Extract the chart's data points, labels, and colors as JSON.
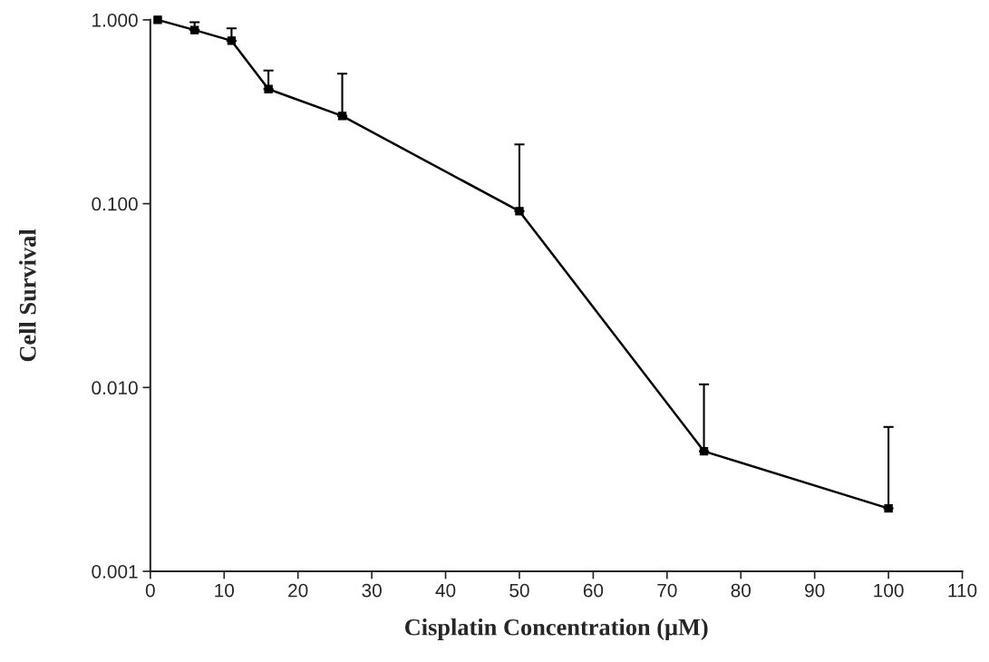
{
  "chart_data": {
    "type": "line",
    "xlabel": "Cisplatin Concentration (μM)",
    "ylabel": "Cell Survival",
    "x": [
      1,
      6,
      11,
      16,
      26,
      50,
      75,
      100
    ],
    "series": [
      {
        "color": "#000000",
        "values": [
          1.0,
          0.88,
          0.77,
          0.42,
          0.3,
          0.091,
          0.0045,
          0.0022
        ],
        "errors": [
          null,
          [
            0.88,
            0.97
          ],
          [
            0.77,
            0.9
          ],
          [
            0.42,
            0.53
          ],
          [
            0.3,
            0.51
          ],
          [
            0.091,
            0.21
          ],
          [
            0.0045,
            0.0104
          ],
          [
            0.0022,
            0.0061
          ]
        ]
      }
    ],
    "log": "y",
    "xlim": [
      0,
      110
    ],
    "xticks": [
      0,
      10,
      20,
      30,
      40,
      50,
      60,
      70,
      80,
      90,
      100,
      110
    ],
    "ylim": [
      0.001,
      1
    ],
    "yticks": [
      {
        "value": 0.001,
        "label": "0.001"
      },
      {
        "value": 0.01,
        "label": "0.010"
      },
      {
        "value": 0.1,
        "label": "0.100"
      },
      {
        "value": 1,
        "label": "1.000"
      }
    ],
    "marker": "square",
    "line_style": "solid"
  }
}
